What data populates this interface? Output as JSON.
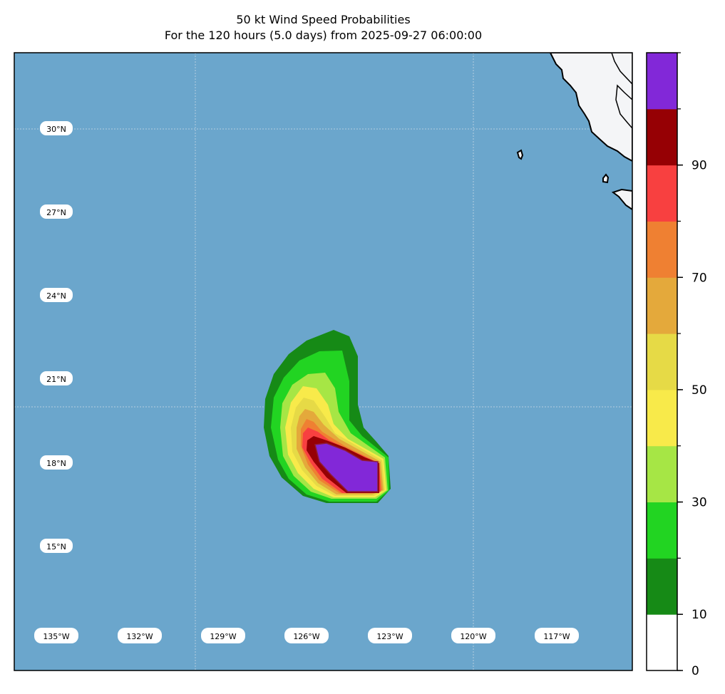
{
  "title_line1": "50 kt Wind Speed Probabilities",
  "title_line2": "For the 120 hours (5.0 days) from 2025-09-27 06:00:00",
  "map": {
    "lat_labels": [
      "30°N",
      "27°N",
      "24°N",
      "21°N",
      "18°N",
      "15°N"
    ],
    "lon_labels": [
      "135°W",
      "132°W",
      "129°W",
      "126°W",
      "123°W",
      "120°W",
      "117°W"
    ],
    "ocean_color": "#6ba6cc",
    "land_color": "#f4f5f7"
  },
  "colorbar": {
    "levels": [
      {
        "min": 0,
        "max": 10,
        "color": "#ffffff"
      },
      {
        "min": 10,
        "max": 20,
        "color": "#168a16"
      },
      {
        "min": 20,
        "max": 30,
        "color": "#22d422"
      },
      {
        "min": 30,
        "max": 40,
        "color": "#a6e645"
      },
      {
        "min": 40,
        "max": 50,
        "color": "#f8ea4a"
      },
      {
        "min": 50,
        "max": 60,
        "color": "#e6da46"
      },
      {
        "min": 60,
        "max": 70,
        "color": "#e4a93b"
      },
      {
        "min": 70,
        "max": 80,
        "color": "#ef8032"
      },
      {
        "min": 80,
        "max": 90,
        "color": "#f84040"
      },
      {
        "min": 90,
        "max": 100,
        "color": "#960004"
      },
      {
        "min": 100,
        "max": 110,
        "color": "#8228d8"
      }
    ],
    "tick_labels": [
      "0",
      "10",
      "30",
      "50",
      "70",
      "90"
    ]
  }
}
